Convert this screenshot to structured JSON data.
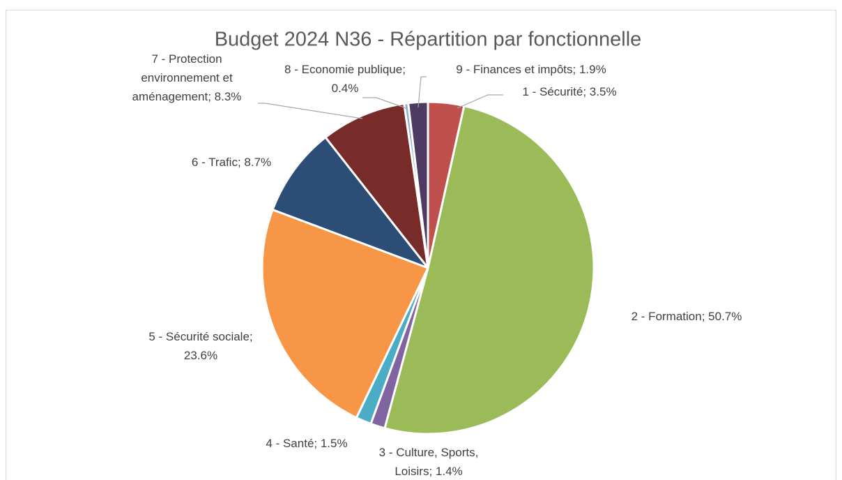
{
  "chart_data": {
    "type": "pie",
    "title": "Budget 2024 N36 - Répartition par fonctionnelle",
    "values": [
      3.5,
      50.7,
      1.4,
      1.5,
      23.6,
      8.7,
      8.3,
      0.4,
      1.9
    ],
    "value_labels": [
      [
        "1 - Sécurité; 3.5%"
      ],
      [
        "2 - Formation; 50.7%"
      ],
      [
        "3 - Culture, Sports,",
        "Loisirs; 1.4%"
      ],
      [
        "4 - Santé; 1.5%"
      ],
      [
        "5 - Sécurité sociale;",
        "23.6%"
      ],
      [
        "6 - Trafic; 8.7%"
      ],
      [
        "7 - Protection",
        "environnement et",
        "aménagement; 8.3%"
      ],
      [
        "8 - Economie publique;",
        "0.4%"
      ],
      [
        "9 - Finances et impôts; 1.9%"
      ]
    ],
    "colors": [
      "#c0504d",
      "#9bbb59",
      "#8064a2",
      "#4bacc6",
      "#f79646",
      "#2c4d75",
      "#772c2a",
      "#8fb0d6",
      "#4d3b62"
    ]
  }
}
